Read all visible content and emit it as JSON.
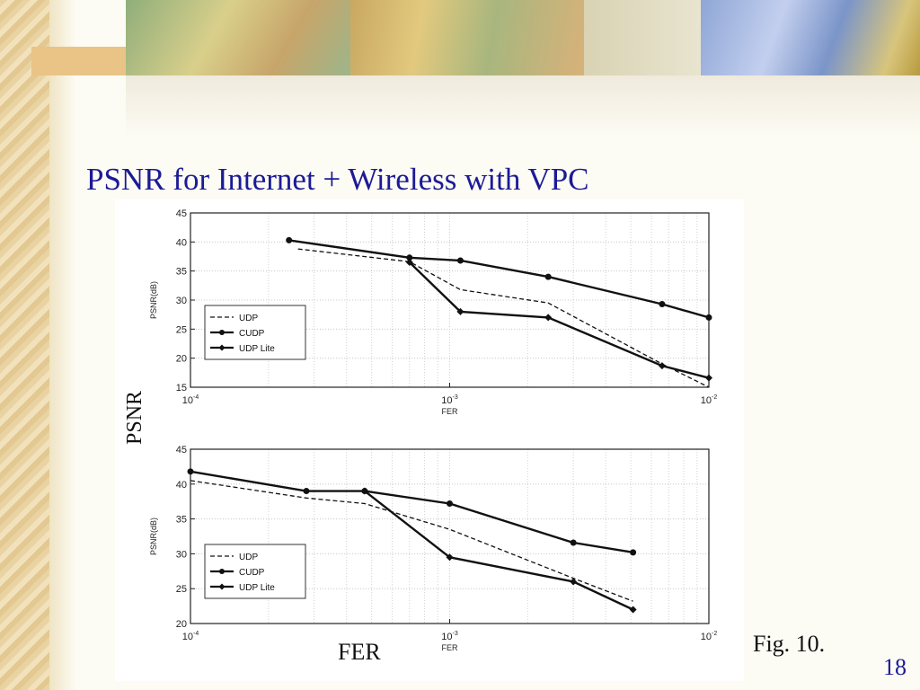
{
  "slide": {
    "title": "PSNR for Internet + Wireless with VPC",
    "y_axis_caption": "PSNR",
    "x_axis_caption": "FER",
    "figure_caption": "Fig. 10.",
    "slide_number": "18"
  },
  "chart_data": [
    {
      "type": "line",
      "xlabel": "FER",
      "ylabel": "PSNR(dB)",
      "x_scale": "log",
      "xlim": [
        0.0001,
        0.01
      ],
      "ylim": [
        15,
        45
      ],
      "x_ticks": [
        0.0001,
        0.001,
        0.01
      ],
      "x_tick_labels": [
        {
          "base": "10",
          "exp": "-4"
        },
        {
          "base": "10",
          "exp": "-3"
        },
        {
          "base": "10",
          "exp": "-2"
        }
      ],
      "y_ticks": [
        15,
        20,
        25,
        30,
        35,
        40,
        45
      ],
      "grid": true,
      "legend": "left",
      "series": [
        {
          "name": "UDP",
          "style": "dashed",
          "marker": "none",
          "x": [
            0.00026,
            0.0007,
            0.0011,
            0.0024,
            0.0066,
            0.01
          ],
          "y": [
            38.8,
            36.6,
            31.8,
            29.5,
            19.0,
            15.0
          ]
        },
        {
          "name": "CUDP",
          "style": "solid",
          "marker": "circle",
          "x": [
            0.00024,
            0.0007,
            0.0011,
            0.0024,
            0.0066,
            0.01
          ],
          "y": [
            40.3,
            37.3,
            36.8,
            34.0,
            29.3,
            27.0
          ]
        },
        {
          "name": "UDP Lite",
          "style": "solid",
          "marker": "diamond",
          "x": [
            0.0007,
            0.0011,
            0.0024,
            0.0066,
            0.01
          ],
          "y": [
            36.5,
            28.0,
            27.0,
            18.7,
            16.6
          ]
        }
      ]
    },
    {
      "type": "line",
      "xlabel": "FER",
      "ylabel": "PSNR(dB)",
      "x_scale": "log",
      "xlim": [
        0.0001,
        0.01
      ],
      "ylim": [
        20,
        45
      ],
      "x_ticks": [
        0.0001,
        0.001,
        0.01
      ],
      "x_tick_labels": [
        {
          "base": "10",
          "exp": "-4"
        },
        {
          "base": "10",
          "exp": "-3"
        },
        {
          "base": "10",
          "exp": "-2"
        }
      ],
      "y_ticks": [
        20,
        25,
        30,
        35,
        40,
        45
      ],
      "grid": true,
      "legend": "bottom-left",
      "series": [
        {
          "name": "UDP",
          "style": "dashed",
          "marker": "none",
          "x": [
            0.0001,
            0.00028,
            0.00047,
            0.001,
            0.003,
            0.0051
          ],
          "y": [
            40.5,
            38.0,
            37.2,
            33.5,
            26.5,
            23.2
          ]
        },
        {
          "name": "CUDP",
          "style": "solid",
          "marker": "circle",
          "x": [
            0.0001,
            0.00028,
            0.00047,
            0.001,
            0.003,
            0.0051
          ],
          "y": [
            41.8,
            39.0,
            39.0,
            37.2,
            31.6,
            30.2
          ]
        },
        {
          "name": "UDP Lite",
          "style": "solid",
          "marker": "diamond",
          "x": [
            0.00047,
            0.001,
            0.003,
            0.0051
          ],
          "y": [
            39.0,
            29.5,
            26.0,
            22.0
          ]
        }
      ]
    }
  ]
}
